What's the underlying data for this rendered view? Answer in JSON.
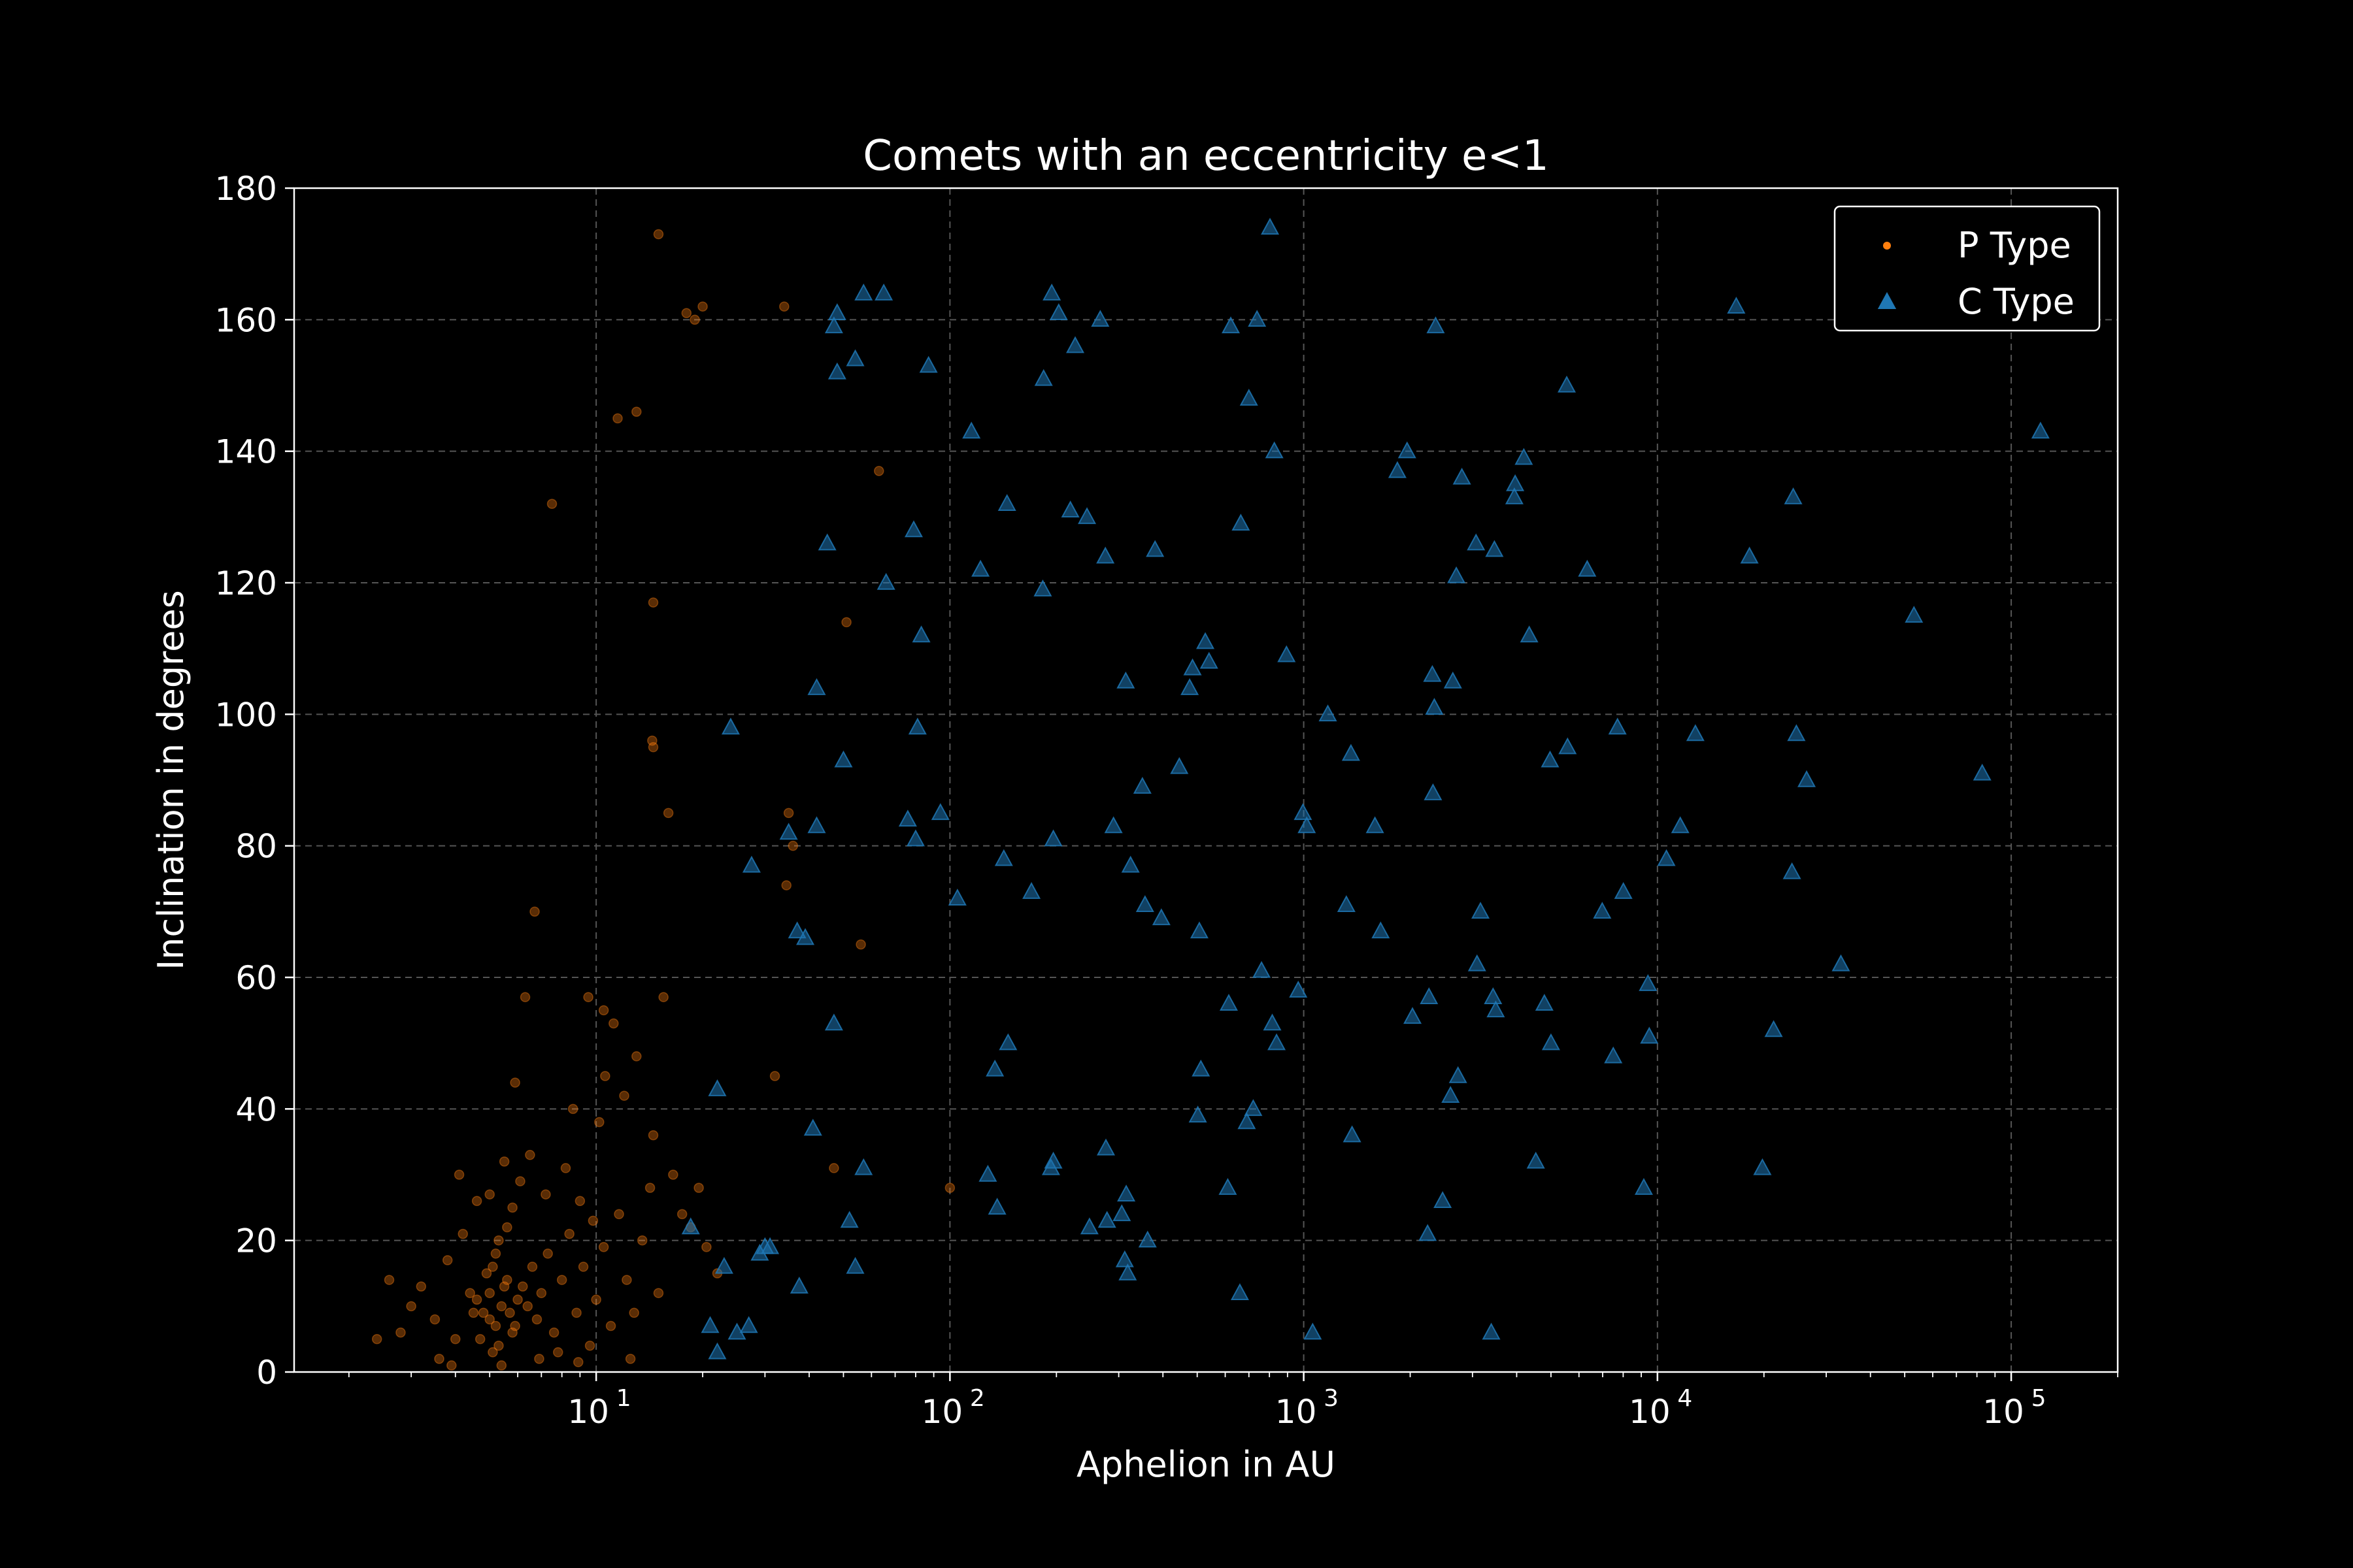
{
  "chart_data": {
    "type": "scatter",
    "title": "Comets with an eccentricity e<1",
    "xlabel": "Aphelion in AU",
    "ylabel": "Inclination in degrees",
    "xscale": "log",
    "xlim": [
      1.4,
      200000
    ],
    "ylim": [
      0,
      180
    ],
    "xticks": [
      {
        "base": "10",
        "exp": "1",
        "value": 10
      },
      {
        "base": "10",
        "exp": "2",
        "value": 100
      },
      {
        "base": "10",
        "exp": "3",
        "value": 1000
      },
      {
        "base": "10",
        "exp": "4",
        "value": 10000
      },
      {
        "base": "10",
        "exp": "5",
        "value": 100000
      }
    ],
    "yticks": [
      "0",
      "20",
      "40",
      "60",
      "80",
      "100",
      "120",
      "140",
      "160",
      "180"
    ],
    "grid": true,
    "legend_position": "top-right",
    "colors": {
      "background": "#000000",
      "p_type": "#ff7f0e",
      "c_type": "#1f77b4",
      "foreground": "#ffffff",
      "grid": "#555555"
    },
    "series": [
      {
        "name": "P Type",
        "marker": "dot",
        "color": "#ff7f0e",
        "points": [
          [
            4.8,
            9
          ],
          [
            5.0,
            12
          ],
          [
            5.2,
            7
          ],
          [
            5.4,
            10
          ],
          [
            5.6,
            14
          ],
          [
            5.8,
            6
          ],
          [
            4.6,
            11
          ],
          [
            5.1,
            16
          ],
          [
            5.3,
            4
          ],
          [
            5.5,
            13
          ],
          [
            5.0,
            8
          ],
          [
            4.9,
            15
          ],
          [
            5.7,
            9
          ],
          [
            6.0,
            11
          ],
          [
            5.2,
            18
          ],
          [
            4.7,
            5
          ],
          [
            5.9,
            7
          ],
          [
            6.2,
            13
          ],
          [
            5.3,
            20
          ],
          [
            5.1,
            3
          ],
          [
            4.5,
            9
          ],
          [
            4.4,
            12
          ],
          [
            5.6,
            22
          ],
          [
            6.4,
            10
          ],
          [
            6.6,
            16
          ],
          [
            5.8,
            25
          ],
          [
            5.0,
            27
          ],
          [
            6.8,
            8
          ],
          [
            7.0,
            12
          ],
          [
            7.3,
            18
          ],
          [
            7.6,
            6
          ],
          [
            8.0,
            14
          ],
          [
            8.4,
            21
          ],
          [
            8.8,
            9
          ],
          [
            9.2,
            16
          ],
          [
            9.6,
            4
          ],
          [
            10.0,
            11
          ],
          [
            10.5,
            19
          ],
          [
            11.0,
            7
          ],
          [
            11.6,
            24
          ],
          [
            12.2,
            14
          ],
          [
            12.8,
            9
          ],
          [
            13.5,
            20
          ],
          [
            14.2,
            28
          ],
          [
            15.0,
            12
          ],
          [
            3.2,
            13
          ],
          [
            3.5,
            8
          ],
          [
            3.8,
            17
          ],
          [
            4.0,
            5
          ],
          [
            4.2,
            21
          ],
          [
            3.0,
            10
          ],
          [
            2.8,
            6
          ],
          [
            2.6,
            14
          ],
          [
            2.4,
            5
          ],
          [
            3.6,
            2
          ],
          [
            3.9,
            1
          ],
          [
            4.1,
            30
          ],
          [
            4.6,
            26
          ],
          [
            5.5,
            32
          ],
          [
            6.1,
            29
          ],
          [
            6.5,
            33
          ],
          [
            7.2,
            27
          ],
          [
            8.2,
            31
          ],
          [
            9.0,
            26
          ],
          [
            9.8,
            23
          ],
          [
            10.2,
            38
          ],
          [
            10.6,
            45
          ],
          [
            11.2,
            53
          ],
          [
            9.5,
            57
          ],
          [
            8.6,
            40
          ],
          [
            12.0,
            42
          ],
          [
            13.0,
            48
          ],
          [
            14.5,
            36
          ],
          [
            15.5,
            57
          ],
          [
            16.5,
            30
          ],
          [
            17.5,
            24
          ],
          [
            18.5,
            22
          ],
          [
            19.5,
            28
          ],
          [
            20.5,
            19
          ],
          [
            22.0,
            15
          ],
          [
            6.3,
            57
          ],
          [
            5.9,
            44
          ],
          [
            6.7,
            70
          ],
          [
            7.5,
            132
          ],
          [
            10.5,
            55
          ],
          [
            11.5,
            145
          ],
          [
            13.0,
            146
          ],
          [
            14.5,
            117
          ],
          [
            14.4,
            96
          ],
          [
            14.5,
            95
          ],
          [
            15.0,
            173
          ],
          [
            16.0,
            85
          ],
          [
            18.0,
            161
          ],
          [
            19.0,
            160
          ],
          [
            20.0,
            162
          ],
          [
            34.0,
            162
          ],
          [
            32.0,
            45
          ],
          [
            35.0,
            85
          ],
          [
            36.0,
            80
          ],
          [
            34.5,
            74
          ],
          [
            47.0,
            31
          ],
          [
            51.0,
            114
          ],
          [
            56.0,
            65
          ],
          [
            63.0,
            137
          ],
          [
            100.0,
            28
          ],
          [
            5.4,
            1
          ],
          [
            6.9,
            2
          ],
          [
            7.8,
            3
          ],
          [
            8.9,
            1.5
          ],
          [
            12.5,
            2
          ]
        ]
      },
      {
        "name": "C Type",
        "marker": "triangle",
        "color": "#1f77b4",
        "points": [
          [
            18.5,
            22
          ],
          [
            22.0,
            43
          ],
          [
            23.0,
            16
          ],
          [
            24.0,
            98
          ],
          [
            21.0,
            7
          ],
          [
            22.0,
            3
          ],
          [
            25.0,
            6
          ],
          [
            27.0,
            7
          ],
          [
            27.5,
            77
          ],
          [
            29.0,
            18
          ],
          [
            30.0,
            19
          ],
          [
            31.0,
            19
          ],
          [
            35.0,
            82
          ],
          [
            37.0,
            67
          ],
          [
            37.5,
            13
          ],
          [
            39.0,
            66
          ],
          [
            41.0,
            37
          ],
          [
            42.0,
            104
          ],
          [
            42.0,
            83
          ],
          [
            45.0,
            126
          ],
          [
            47.0,
            53
          ],
          [
            47.0,
            159
          ],
          [
            48.0,
            161
          ],
          [
            48.0,
            152
          ],
          [
            50.0,
            93
          ],
          [
            52.0,
            23
          ],
          [
            54.0,
            154
          ],
          [
            54.0,
            16
          ],
          [
            57.0,
            164
          ],
          [
            57.0,
            31
          ],
          [
            65.0,
            164
          ],
          [
            66.0,
            120
          ],
          [
            76.0,
            84
          ],
          [
            79.0,
            128
          ],
          [
            80.0,
            81
          ],
          [
            81.0,
            98
          ],
          [
            83.0,
            112
          ],
          [
            87.0,
            153
          ],
          [
            94.0,
            85
          ],
          [
            105.0,
            72
          ],
          [
            115.0,
            143
          ],
          [
            122.0,
            122
          ],
          [
            128.0,
            30
          ],
          [
            134.0,
            46
          ],
          [
            136.0,
            25
          ],
          [
            142.0,
            78
          ],
          [
            145.0,
            132
          ],
          [
            146.0,
            50
          ],
          [
            170.0,
            73
          ],
          [
            183.0,
            119
          ],
          [
            184.0,
            151
          ],
          [
            194.0,
            164
          ],
          [
            193.0,
            31
          ],
          [
            196.0,
            32
          ],
          [
            196.0,
            81
          ],
          [
            203.0,
            161
          ],
          [
            219.0,
            131
          ],
          [
            226.0,
            156
          ],
          [
            244.0,
            130
          ],
          [
            248.0,
            22
          ],
          [
            266.0,
            160
          ],
          [
            275.0,
            124
          ],
          [
            276.0,
            34
          ],
          [
            278.0,
            23
          ],
          [
            290.0,
            83
          ],
          [
            306.0,
            24
          ],
          [
            312.0,
            17
          ],
          [
            314.0,
            105
          ],
          [
            315.0,
            27
          ],
          [
            318.0,
            15
          ],
          [
            324.0,
            77
          ],
          [
            350.0,
            89
          ],
          [
            356.0,
            71
          ],
          [
            362.0,
            20
          ],
          [
            380.0,
            125
          ],
          [
            396.0,
            69
          ],
          [
            445.0,
            92
          ],
          [
            476.0,
            104
          ],
          [
            485.0,
            107
          ],
          [
            502.0,
            39
          ],
          [
            507.0,
            67
          ],
          [
            512.0,
            46
          ],
          [
            527.0,
            111
          ],
          [
            540.0,
            108
          ],
          [
            610.0,
            28
          ],
          [
            614.0,
            56
          ],
          [
            622.0,
            159
          ],
          [
            660.0,
            12
          ],
          [
            664.0,
            129
          ],
          [
            690.0,
            38
          ],
          [
            700.0,
            148
          ],
          [
            720.0,
            40
          ],
          [
            738.0,
            160
          ],
          [
            760.0,
            61
          ],
          [
            803.0,
            174
          ],
          [
            815.0,
            53
          ],
          [
            826.0,
            140
          ],
          [
            838.0,
            50
          ],
          [
            894.0,
            109
          ],
          [
            965.0,
            58
          ],
          [
            995.0,
            85
          ],
          [
            1020.0,
            83
          ],
          [
            1060.0,
            6
          ],
          [
            1170.0,
            100
          ],
          [
            1320.0,
            71
          ],
          [
            1360.0,
            94
          ],
          [
            1370.0,
            36
          ],
          [
            1590.0,
            83
          ],
          [
            1650.0,
            67
          ],
          [
            1840.0,
            137
          ],
          [
            1960.0,
            140
          ],
          [
            2030.0,
            54
          ],
          [
            2240.0,
            21
          ],
          [
            2260.0,
            57
          ],
          [
            2310.0,
            106
          ],
          [
            2320.0,
            88
          ],
          [
            2340.0,
            101
          ],
          [
            2360.0,
            159
          ],
          [
            2470.0,
            26
          ],
          [
            2600.0,
            42
          ],
          [
            2640.0,
            105
          ],
          [
            2700.0,
            121
          ],
          [
            2730.0,
            45
          ],
          [
            2800.0,
            136
          ],
          [
            3070.0,
            126
          ],
          [
            3090.0,
            62
          ],
          [
            3160.0,
            70
          ],
          [
            3390.0,
            6
          ],
          [
            3430.0,
            57
          ],
          [
            3460.0,
            125
          ],
          [
            3490.0,
            55
          ],
          [
            3940.0,
            133
          ],
          [
            3960.0,
            135
          ],
          [
            4190.0,
            139
          ],
          [
            4340.0,
            112
          ],
          [
            4530.0,
            32
          ],
          [
            4790.0,
            56
          ],
          [
            4970.0,
            93
          ],
          [
            5000.0,
            50
          ],
          [
            5540.0,
            150
          ],
          [
            5570.0,
            95
          ],
          [
            6330.0,
            122
          ],
          [
            6980.0,
            70
          ],
          [
            7500.0,
            48
          ],
          [
            7710.0,
            98
          ],
          [
            8010.0,
            73
          ],
          [
            9150.0,
            28
          ],
          [
            9400.0,
            59
          ],
          [
            9480.0,
            51
          ],
          [
            10600.0,
            78
          ],
          [
            11600.0,
            83
          ],
          [
            12800.0,
            97
          ],
          [
            16700.0,
            162
          ],
          [
            18200.0,
            124
          ],
          [
            19800.0,
            31
          ],
          [
            21300.0,
            52
          ],
          [
            24000.0,
            76
          ],
          [
            24200.0,
            133
          ],
          [
            24700.0,
            97
          ],
          [
            26400.0,
            90
          ],
          [
            33000.0,
            62
          ],
          [
            53100.0,
            115
          ],
          [
            82800.0,
            91
          ],
          [
            121000.0,
            143
          ]
        ]
      }
    ]
  }
}
